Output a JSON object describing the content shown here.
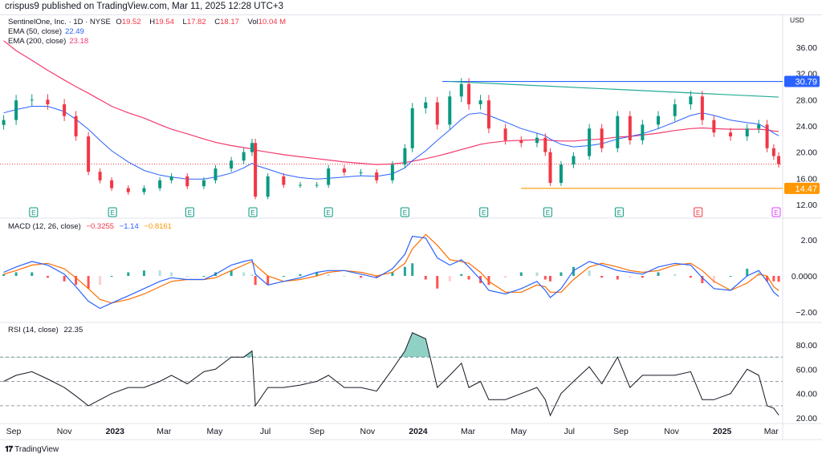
{
  "header": {
    "publisher_line": "crispus9 published on TradingView.com, Mar 11, 2025 12:28 UTC+3",
    "symbol": "SentinelOne, Inc. · 1D · NYSE",
    "open_label": "O",
    "open": "19.52",
    "high_label": "H",
    "high": "19.54",
    "low_label": "L",
    "low": "17.82",
    "close_label": "C",
    "close": "18.17",
    "vol_label": "Vol",
    "vol": "10.04 M",
    "ema50_label": "EMA (50, close)",
    "ema50": "22.49",
    "ema200_label": "EMA (200, close)",
    "ema200": "23.18",
    "macd_label": "MACD (12, 26, close)",
    "macd_hist": "−0.3255",
    "macd_line": "−1.14",
    "macd_signal": "−0.8161",
    "rsi_label": "RSI (14, close)",
    "rsi": "22.35",
    "currency": "USD",
    "logo_text": "TradingView"
  },
  "colors": {
    "up": "#089981",
    "down": "#f23645",
    "ema50": "#2962ff",
    "ema200": "#f23b6d",
    "macd": "#2962ff",
    "signal": "#ff6d00",
    "rsi": "#131722",
    "resistance": "#2962ff",
    "trendline": "#22ab94",
    "support": "#ff9800"
  },
  "chart_data": [
    {
      "type": "candlestick-line",
      "pane": "price",
      "ylim": [
        10,
        38
      ],
      "yticks": [
        "36.00",
        "32.00",
        "28.00",
        "24.00",
        "20.00",
        "16.00",
        "12.00"
      ],
      "xticks": [
        {
          "label": "Sep",
          "date": "2022-09-01",
          "bold": false
        },
        {
          "label": "Nov",
          "date": "2022-11-01",
          "bold": false
        },
        {
          "label": "2023",
          "date": "2023-01-01",
          "bold": true
        },
        {
          "label": "Mar",
          "date": "2023-03-01",
          "bold": false
        },
        {
          "label": "May",
          "date": "2023-05-01",
          "bold": false
        },
        {
          "label": "Jul",
          "date": "2023-07-01",
          "bold": false
        },
        {
          "label": "Sep",
          "date": "2023-09-01",
          "bold": false
        },
        {
          "label": "Nov",
          "date": "2023-11-01",
          "bold": false
        },
        {
          "label": "2024",
          "date": "2024-01-01",
          "bold": true
        },
        {
          "label": "Mar",
          "date": "2024-03-01",
          "bold": false
        },
        {
          "label": "May",
          "date": "2024-05-01",
          "bold": false
        },
        {
          "label": "Jul",
          "date": "2024-07-01",
          "bold": false
        },
        {
          "label": "Sep",
          "date": "2024-09-01",
          "bold": false
        },
        {
          "label": "Nov",
          "date": "2024-11-01",
          "bold": false
        },
        {
          "label": "2025",
          "date": "2025-01-01",
          "bold": true
        },
        {
          "label": "Mar",
          "date": "2025-03-01",
          "bold": false
        }
      ],
      "dates": [
        "2022-08-20",
        "2022-09-04",
        "2022-09-23",
        "2022-10-12",
        "2022-11-01",
        "2022-11-15",
        "2022-11-30",
        "2022-12-14",
        "2022-12-28",
        "2023-01-17",
        "2023-02-05",
        "2023-02-24",
        "2023-03-10",
        "2023-03-29",
        "2023-04-18",
        "2023-05-02",
        "2023-05-21",
        "2023-06-05",
        "2023-06-15",
        "2023-06-19",
        "2023-07-04",
        "2023-07-23",
        "2023-08-12",
        "2023-09-01",
        "2023-09-15",
        "2023-10-04",
        "2023-10-24",
        "2023-11-12",
        "2023-12-01",
        "2023-12-16",
        "2023-12-25",
        "2024-01-10",
        "2024-01-24",
        "2024-02-08",
        "2024-02-22",
        "2024-03-02",
        "2024-03-16",
        "2024-03-26",
        "2024-04-15",
        "2024-05-04",
        "2024-05-23",
        "2024-06-02",
        "2024-06-08",
        "2024-06-21",
        "2024-07-06",
        "2024-07-25",
        "2024-08-09",
        "2024-08-28",
        "2024-09-12",
        "2024-09-27",
        "2024-10-16",
        "2024-11-05",
        "2024-11-24",
        "2024-12-08",
        "2024-12-22",
        "2025-01-11",
        "2025-01-31",
        "2025-02-14",
        "2025-02-24",
        "2025-03-04",
        "2025-03-10"
      ],
      "close": [
        24.9,
        27.9,
        28,
        27.3,
        25.5,
        22.4,
        17,
        15.7,
        14.5,
        13.9,
        14.5,
        15.7,
        16.3,
        14.8,
        15.7,
        17.5,
        18.7,
        20,
        21.4,
        13.2,
        16.3,
        15,
        15,
        15,
        17.5,
        16.9,
        16.9,
        15.7,
        18.1,
        20.6,
        26.7,
        27.6,
        24.2,
        28.5,
        30.4,
        27.3,
        27.9,
        23.6,
        21.8,
        21.4,
        22.2,
        20,
        15.3,
        18.1,
        19.4,
        23.6,
        20.6,
        25.5,
        21.8,
        24.2,
        25.5,
        27.3,
        28.5,
        24.9,
        23,
        22.4,
        23.6,
        24.2,
        20.6,
        19.4,
        18.17
      ],
      "series": [
        {
          "name": "EMA (50, close)",
          "values": [
            26,
            26.5,
            27,
            27,
            26.2,
            25,
            23.5,
            21.8,
            20.2,
            18.5,
            17.2,
            16.5,
            16.2,
            15.9,
            15.9,
            16.2,
            16.8,
            17.6,
            18.3,
            18,
            17.4,
            16.6,
            16.1,
            15.9,
            16,
            16.2,
            16.4,
            16.3,
            16.7,
            17.6,
            18.7,
            20.2,
            21.8,
            23.4,
            25,
            25.8,
            26,
            25.6,
            24.6,
            23.6,
            22.9,
            22.5,
            22,
            21.2,
            20.8,
            21,
            21.3,
            22,
            22.4,
            22.8,
            23.6,
            24.6,
            25.6,
            26,
            25.6,
            24.9,
            24.5,
            24.3,
            23.6,
            22.9,
            22.49
          ]
        },
        {
          "name": "EMA (200, close)",
          "values": [
            37,
            35.5,
            34,
            32.5,
            31,
            30,
            29,
            28,
            27,
            26,
            25.2,
            24.2,
            23.5,
            22.8,
            22,
            21.5,
            21,
            20.7,
            20.5,
            20.3,
            20,
            19.6,
            19.3,
            19,
            18.8,
            18.5,
            18.3,
            18.1,
            18.2,
            18.4,
            18.6,
            19,
            19.4,
            19.9,
            20.4,
            20.7,
            21.2,
            21.4,
            21.7,
            21.8,
            21.9,
            21.9,
            21.8,
            21.7,
            21.7,
            21.9,
            22,
            22.3,
            22.4,
            22.6,
            22.9,
            23.3,
            23.6,
            23.7,
            23.6,
            23.5,
            23.5,
            23.5,
            23.4,
            23.2,
            23.18
          ]
        }
      ],
      "annotations": {
        "resistance": {
          "value": 30.79,
          "label": "30.79",
          "from": "2024-01-30"
        },
        "trendline": {
          "from_date": "2024-02-08",
          "from_value": 30.79,
          "to_date": "2025-03-10",
          "to_value": 28.4
        },
        "support": {
          "value": 14.47,
          "label": "14.47",
          "from": "2024-05-04"
        },
        "last_price": 18.17,
        "earnings_dates": [
          "2022-09-25",
          "2022-12-29",
          "2023-04-01",
          "2023-06-16",
          "2023-09-15",
          "2023-12-16",
          "2024-03-20",
          "2024-06-05",
          "2024-08-30",
          "2024-12-03",
          "2025-03-07"
        ],
        "earnings_label": "E"
      }
    },
    {
      "type": "line",
      "pane": "macd",
      "ylim": [
        -2.5,
        3
      ],
      "yticks": [
        "2.00",
        "0.0000",
        "−2.00"
      ],
      "series": [
        {
          "name": "MACD",
          "values": [
            0.2,
            0.5,
            0.8,
            0.6,
            0.1,
            -0.6,
            -1.4,
            -1.8,
            -1.5,
            -1.1,
            -0.7,
            -0.3,
            -0.1,
            -0.2,
            -0.2,
            0.1,
            0.6,
            0.8,
            0.9,
            0.1,
            -0.5,
            -0.3,
            -0.1,
            0.2,
            0.3,
            0.3,
            0.1,
            -0.1,
            0.4,
            1.2,
            2.2,
            2.1,
            1.0,
            0.6,
            0.9,
            0.5,
            -0.2,
            -0.8,
            -1.0,
            -0.7,
            -0.3,
            -0.8,
            -1.2,
            -0.7,
            0.3,
            0.8,
            0.6,
            0.3,
            0.2,
            0.1,
            0.5,
            0.7,
            0.6,
            -0.1,
            -0.7,
            -0.8,
            0,
            0.3,
            -0.3,
            -0.9,
            -1.14
          ]
        },
        {
          "name": "Signal",
          "values": [
            0.1,
            0.3,
            0.6,
            0.7,
            0.4,
            -0.1,
            -0.7,
            -1.3,
            -1.5,
            -1.3,
            -1,
            -0.6,
            -0.3,
            -0.2,
            -0.2,
            -0.1,
            0.3,
            0.6,
            0.8,
            0.6,
            0,
            -0.3,
            -0.2,
            0,
            0.2,
            0.3,
            0.2,
            0,
            0.2,
            0.7,
            1.5,
            2.3,
            1.7,
            0.9,
            0.8,
            0.7,
            0.2,
            -0.3,
            -0.9,
            -0.9,
            -0.5,
            -0.6,
            -0.9,
            -0.9,
            -0.2,
            0.5,
            0.7,
            0.5,
            0.3,
            0.2,
            0.3,
            0.6,
            0.7,
            0.3,
            -0.3,
            -0.8,
            -0.4,
            0.1,
            0.0,
            -0.6,
            -0.8161
          ]
        }
      ]
    },
    {
      "type": "line",
      "pane": "rsi",
      "ylim": [
        15,
        95
      ],
      "yticks": [
        "80.00",
        "60.00",
        "40.00",
        "20.00"
      ],
      "bands": [
        70,
        50,
        30
      ],
      "series": [
        {
          "name": "RSI",
          "values": [
            50,
            55,
            58,
            52,
            45,
            38,
            30,
            35,
            40,
            45,
            45,
            50,
            55,
            48,
            58,
            60,
            70,
            70,
            75,
            30,
            45,
            45,
            47,
            50,
            55,
            45,
            45,
            42,
            60,
            75,
            90,
            85,
            45,
            55,
            65,
            45,
            50,
            35,
            35,
            40,
            45,
            35,
            22,
            40,
            50,
            62,
            48,
            70,
            45,
            55,
            55,
            55,
            58,
            35,
            35,
            40,
            60,
            55,
            30,
            28,
            22.35
          ]
        }
      ]
    }
  ]
}
